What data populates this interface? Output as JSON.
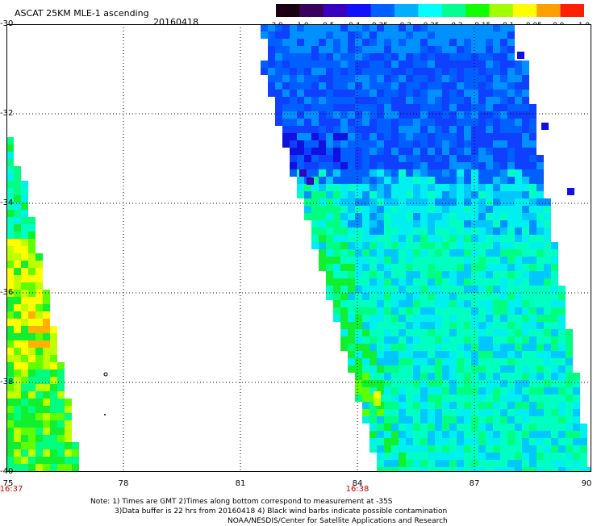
{
  "header": {
    "title": "ASCAT 25KM MLE-1 ascending",
    "date": "20160418"
  },
  "colorbar": {
    "labels": [
      "-3.0",
      "-1.0",
      "-0.5",
      "-0.4",
      "-0.35",
      "-0.3",
      "-0.25",
      "-0.2",
      "-0.15",
      "-0.1",
      "-0.05",
      "0.0",
      "1.0"
    ],
    "colors": [
      "#1a0010",
      "#3a0060",
      "#3a00c0",
      "#1010ff",
      "#0060ff",
      "#00b0ff",
      "#00ffff",
      "#00ff90",
      "#10ff00",
      "#a0ff00",
      "#ffff00",
      "#ffa000",
      "#ff2000"
    ]
  },
  "axes": {
    "lat_labels": [
      "-30",
      "-32",
      "-34",
      "-36",
      "-38",
      "-40"
    ],
    "lon_labels": [
      "75",
      "78",
      "81",
      "84",
      "87",
      "90"
    ],
    "time_labels": [
      {
        "lon": "75",
        "text": "16:37"
      },
      {
        "lon": "84",
        "text": "16:38"
      }
    ]
  },
  "notes": [
    "Note: 1) Times are GMT 2)Times along bottom correspond to measurement at -35S",
    "3)Data buffer is 22 hrs from 20160418 4) Black wind barbs indicate possible contamination",
    "NOAA/NESDIS/Center for Satellite Applications and Research"
  ]
}
